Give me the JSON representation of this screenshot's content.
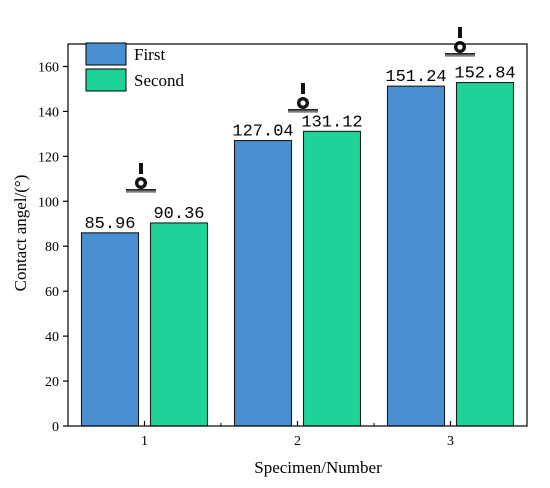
{
  "chart_data": {
    "type": "bar",
    "categories": [
      "1",
      "2",
      "3"
    ],
    "series": [
      {
        "name": "First",
        "values": [
          85.96,
          127.04,
          151.24
        ],
        "color": "#4a8fd2",
        "labels": [
          "85.96",
          "127.04",
          "151.24"
        ]
      },
      {
        "name": "Second",
        "values": [
          90.36,
          131.12,
          152.84
        ],
        "color": "#1ed39a",
        "labels": [
          "90.36",
          "131.12",
          "152.84"
        ]
      }
    ],
    "xlabel": "Specimen/Number",
    "ylabel": "Contact angel/(°)",
    "ylim": [
      0,
      170
    ],
    "yticks": [
      "0",
      "20",
      "40",
      "60",
      "80",
      "100",
      "120",
      "140",
      "160"
    ],
    "grid": false,
    "legend_position": "top-left",
    "droplet_icons": [
      "droplet-icon",
      "droplet-icon",
      "droplet-icon"
    ]
  }
}
